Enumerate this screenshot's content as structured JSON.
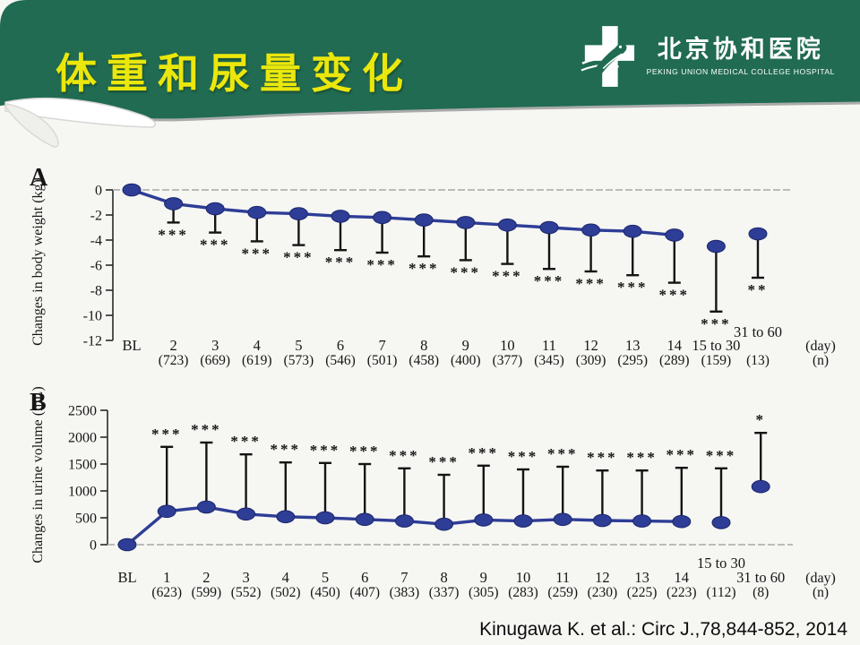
{
  "slide": {
    "title": "体重和尿量变化",
    "citation": "Kinugawa K. et al.: Circ J.,78,844-852, 2014"
  },
  "logo": {
    "name_cn": "北京协和医院",
    "name_en": "PEKING UNION MEDICAL COLLEGE HOSPITAL"
  },
  "colors": {
    "header_green": "#206b51",
    "title_yellow": "#ebe70c",
    "series_blue": "#2e3d96",
    "marker_edge": "#1b276b",
    "error_black": "#141414",
    "baseline_gray": "#b3b3b3",
    "axis_black": "#2a2a2a",
    "swoosh_gray": "#a9abaa"
  },
  "chart_data": [
    {
      "id": "A",
      "type": "line",
      "panel_label": "A",
      "ylabel": "Changes in body weight (kg)",
      "xlabel_unit": "(day)",
      "n_row_unit": "(n)",
      "ylim": [
        -12,
        0
      ],
      "yticks": [
        0,
        -2,
        -4,
        -6,
        -8,
        -10,
        -12
      ],
      "grid": "baseline-only",
      "legend": "none",
      "categories": [
        "BL",
        "2",
        "3",
        "4",
        "5",
        "6",
        "7",
        "8",
        "9",
        "10",
        "11",
        "12",
        "13",
        "14",
        "15 to 30",
        "31 to 60"
      ],
      "values": [
        0,
        -1.1,
        -1.5,
        -1.8,
        -1.9,
        -2.1,
        -2.2,
        -2.4,
        -2.6,
        -2.8,
        -3.0,
        -3.2,
        -3.3,
        -3.6,
        -4.5,
        -3.5
      ],
      "error_ends": [
        null,
        -2.6,
        -3.4,
        -4.1,
        -4.4,
        -4.8,
        -5.0,
        -5.3,
        -5.6,
        -5.9,
        -6.3,
        -6.5,
        -6.8,
        -7.4,
        -9.7,
        -7.0
      ],
      "error_direction": "down",
      "significance": [
        "",
        "***",
        "***",
        "***",
        "***",
        "***",
        "***",
        "***",
        "***",
        "***",
        "***",
        "***",
        "***",
        "***",
        "***",
        "**"
      ],
      "n_values": [
        "",
        "(723)",
        "(669)",
        "(619)",
        "(573)",
        "(546)",
        "(501)",
        "(458)",
        "(400)",
        "(377)",
        "(345)",
        "(309)",
        "(295)",
        "(289)",
        "(159)",
        "(13)"
      ],
      "connected_points": 14,
      "raised_labels": [
        "31 to 60"
      ]
    },
    {
      "id": "B",
      "type": "line",
      "panel_label": "B",
      "ylabel": "Changes in urine volume (mL)",
      "xlabel_unit": "(day)",
      "n_row_unit": "(n)",
      "ylim": [
        0,
        2500
      ],
      "yticks": [
        0,
        500,
        1000,
        1500,
        2000,
        2500
      ],
      "grid": "baseline-only",
      "legend": "none",
      "categories": [
        "BL",
        "1",
        "2",
        "3",
        "4",
        "5",
        "6",
        "7",
        "8",
        "9",
        "10",
        "11",
        "12",
        "13",
        "14",
        "15 to 30",
        "31 to 60"
      ],
      "values": [
        0,
        620,
        700,
        570,
        520,
        500,
        470,
        440,
        380,
        460,
        440,
        470,
        450,
        440,
        430,
        410,
        1080
      ],
      "error_ends": [
        null,
        1820,
        1900,
        1680,
        1530,
        1520,
        1500,
        1420,
        1300,
        1470,
        1400,
        1450,
        1380,
        1380,
        1430,
        1420,
        2080
      ],
      "error_direction": "up",
      "significance": [
        "",
        "***",
        "***",
        "***",
        "***",
        "***",
        "***",
        "***",
        "***",
        "***",
        "***",
        "***",
        "***",
        "***",
        "***",
        "***",
        "*"
      ],
      "n_values": [
        "",
        "(623)",
        "(599)",
        "(552)",
        "(502)",
        "(450)",
        "(407)",
        "(383)",
        "(337)",
        "(305)",
        "(283)",
        "(259)",
        "(230)",
        "(225)",
        "(223)",
        "(112)",
        "(8)"
      ],
      "connected_points": 15,
      "raised_labels": [
        "15 to 30"
      ]
    }
  ]
}
